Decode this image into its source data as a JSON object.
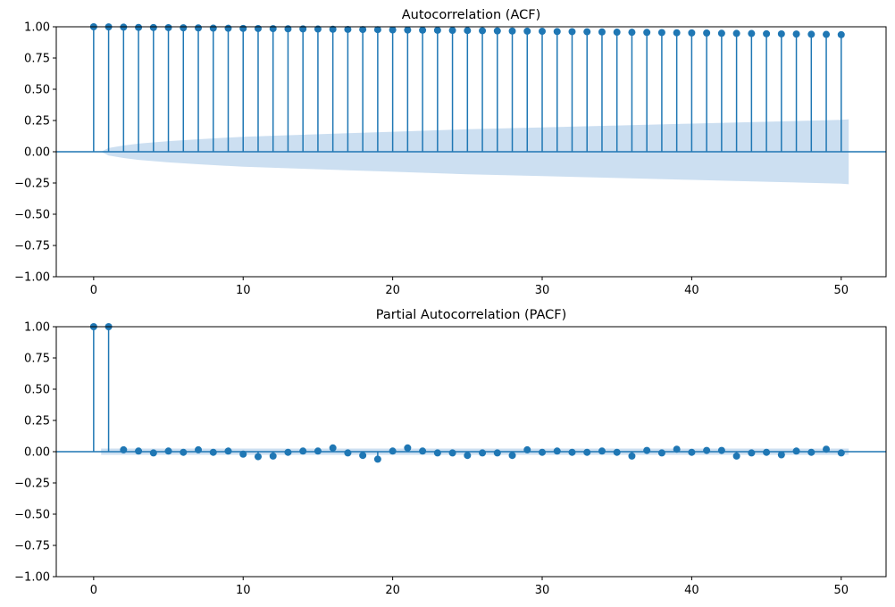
{
  "chart_data": [
    {
      "type": "stem",
      "title": "Autocorrelation (ACF)",
      "xlabel": "",
      "ylabel": "",
      "xlim": [
        -2.5,
        53
      ],
      "ylim": [
        -1.0,
        1.0
      ],
      "xticks": [
        0,
        10,
        20,
        30,
        40,
        50
      ],
      "xtick_labels": [
        "0",
        "10",
        "20",
        "30",
        "40",
        "50"
      ],
      "yticks": [
        1.0,
        0.75,
        0.5,
        0.25,
        0.0,
        -0.25,
        -0.5,
        -0.75,
        -1.0
      ],
      "ytick_labels": [
        "1.00",
        "0.75",
        "0.50",
        "0.25",
        "0.00",
        "−0.25",
        "−0.50",
        "−0.75",
        "−1.00"
      ],
      "grid": false,
      "colors": {
        "series": "#1f77b4",
        "confint": "#c6dbef"
      },
      "lags": [
        0,
        1,
        2,
        3,
        4,
        5,
        6,
        7,
        8,
        9,
        10,
        11,
        12,
        13,
        14,
        15,
        16,
        17,
        18,
        19,
        20,
        21,
        22,
        23,
        24,
        25,
        26,
        27,
        28,
        29,
        30,
        31,
        32,
        33,
        34,
        35,
        36,
        37,
        38,
        39,
        40,
        41,
        42,
        43,
        44,
        45,
        46,
        47,
        48,
        49,
        50
      ],
      "values": [
        1.0,
        0.999,
        0.997,
        0.995,
        0.994,
        0.993,
        0.992,
        0.991,
        0.989,
        0.988,
        0.987,
        0.986,
        0.985,
        0.984,
        0.983,
        0.982,
        0.98,
        0.979,
        0.978,
        0.977,
        0.975,
        0.974,
        0.973,
        0.972,
        0.971,
        0.97,
        0.968,
        0.967,
        0.966,
        0.965,
        0.964,
        0.962,
        0.961,
        0.96,
        0.959,
        0.957,
        0.956,
        0.955,
        0.954,
        0.952,
        0.951,
        0.95,
        0.948,
        0.947,
        0.946,
        0.944,
        0.943,
        0.942,
        0.94,
        0.939,
        0.937
      ],
      "confint_lags": [
        0.5,
        1,
        2,
        3,
        5,
        7,
        10,
        15,
        20,
        25,
        30,
        35,
        40,
        45,
        50,
        50.5
      ],
      "confint_upper": [
        0.0,
        0.03,
        0.05,
        0.065,
        0.085,
        0.1,
        0.12,
        0.14,
        0.16,
        0.18,
        0.195,
        0.21,
        0.225,
        0.24,
        0.255,
        0.26
      ]
    },
    {
      "type": "stem",
      "title": "Partial Autocorrelation (PACF)",
      "xlabel": "",
      "ylabel": "",
      "xlim": [
        -2.5,
        53
      ],
      "ylim": [
        -1.0,
        1.0
      ],
      "xticks": [
        0,
        10,
        20,
        30,
        40,
        50
      ],
      "xtick_labels": [
        "0",
        "10",
        "20",
        "30",
        "40",
        "50"
      ],
      "yticks": [
        1.0,
        0.75,
        0.5,
        0.25,
        0.0,
        -0.25,
        -0.5,
        -0.75,
        -1.0
      ],
      "ytick_labels": [
        "1.00",
        "0.75",
        "0.50",
        "0.25",
        "0.00",
        "−0.25",
        "−0.50",
        "−0.75",
        "−1.00"
      ],
      "grid": false,
      "colors": {
        "series": "#1f77b4",
        "confint": "#c6dbef"
      },
      "lags": [
        0,
        1,
        2,
        3,
        4,
        5,
        6,
        7,
        8,
        9,
        10,
        11,
        12,
        13,
        14,
        15,
        16,
        17,
        18,
        19,
        20,
        21,
        22,
        23,
        24,
        25,
        26,
        27,
        28,
        29,
        30,
        31,
        32,
        33,
        34,
        35,
        36,
        37,
        38,
        39,
        40,
        41,
        42,
        43,
        44,
        45,
        46,
        47,
        48,
        49,
        50
      ],
      "values": [
        1.0,
        1.0,
        0.015,
        0.005,
        -0.01,
        0.005,
        -0.005,
        0.015,
        -0.005,
        0.005,
        -0.02,
        -0.04,
        -0.035,
        -0.005,
        0.005,
        0.005,
        0.03,
        -0.01,
        -0.03,
        -0.06,
        0.005,
        0.03,
        0.005,
        -0.01,
        -0.01,
        -0.03,
        -0.01,
        -0.01,
        -0.03,
        0.015,
        -0.005,
        0.005,
        -0.005,
        -0.005,
        0.005,
        -0.005,
        -0.035,
        0.01,
        -0.01,
        0.02,
        -0.005,
        0.01,
        0.01,
        -0.035,
        -0.01,
        -0.005,
        -0.025,
        0.005,
        -0.005,
        0.02,
        -0.01
      ],
      "confint_lags": [
        0.5,
        50.5
      ],
      "confint_upper": [
        0.025,
        0.025
      ]
    }
  ]
}
